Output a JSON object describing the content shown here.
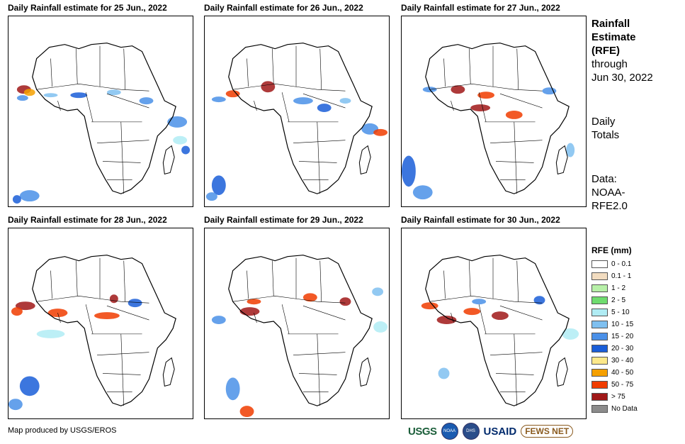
{
  "panels": [
    {
      "title": "Daily Rainfall estimate for 25 Jun., 2022"
    },
    {
      "title": "Daily Rainfall estimate for 26 Jun., 2022"
    },
    {
      "title": "Daily Rainfall estimate for 27 Jun., 2022"
    },
    {
      "title": "Daily Rainfall estimate for 28 Jun., 2022"
    },
    {
      "title": "Daily Rainfall estimate for 29 Jun., 2022"
    },
    {
      "title": "Daily Rainfall estimate for 30 Jun., 2022"
    }
  ],
  "side_info": {
    "title_line1": "Rainfall",
    "title_line2": "Estimate",
    "title_line3": "(RFE)",
    "through_label": "through",
    "through_date": "Jun 30, 2022",
    "totals_line1": "Daily",
    "totals_line2": "Totals",
    "data_line1": "Data:",
    "data_line2": "NOAA-",
    "data_line3": "RFE2.0"
  },
  "legend": {
    "title": "RFE (mm)",
    "items": [
      {
        "label": "0 - 0.1",
        "color": "#ffffff"
      },
      {
        "label": "0.1 - 1",
        "color": "#f2dcc0"
      },
      {
        "label": "1 - 2",
        "color": "#b7f0a8"
      },
      {
        "label": "2 - 5",
        "color": "#6fdc6f"
      },
      {
        "label": "5 - 10",
        "color": "#b0ecf4"
      },
      {
        "label": "10 - 15",
        "color": "#7fc0f0"
      },
      {
        "label": "15 - 20",
        "color": "#4a90e8"
      },
      {
        "label": "20 - 30",
        "color": "#1a5ed8"
      },
      {
        "label": "30 - 40",
        "color": "#fce88a"
      },
      {
        "label": "40 - 50",
        "color": "#f5a000"
      },
      {
        "label": "50 - 75",
        "color": "#f03c00"
      },
      {
        "label": "> 75",
        "color": "#a01818"
      },
      {
        "label": "No Data",
        "color": "#8c8c8c"
      }
    ]
  },
  "credit": "Map produced by USGS/EROS",
  "logos": {
    "usgs": "USGS",
    "noaa": "NOAA",
    "dhs": "DHS",
    "usaid": "USAID",
    "fews": "FEWS NET"
  }
}
